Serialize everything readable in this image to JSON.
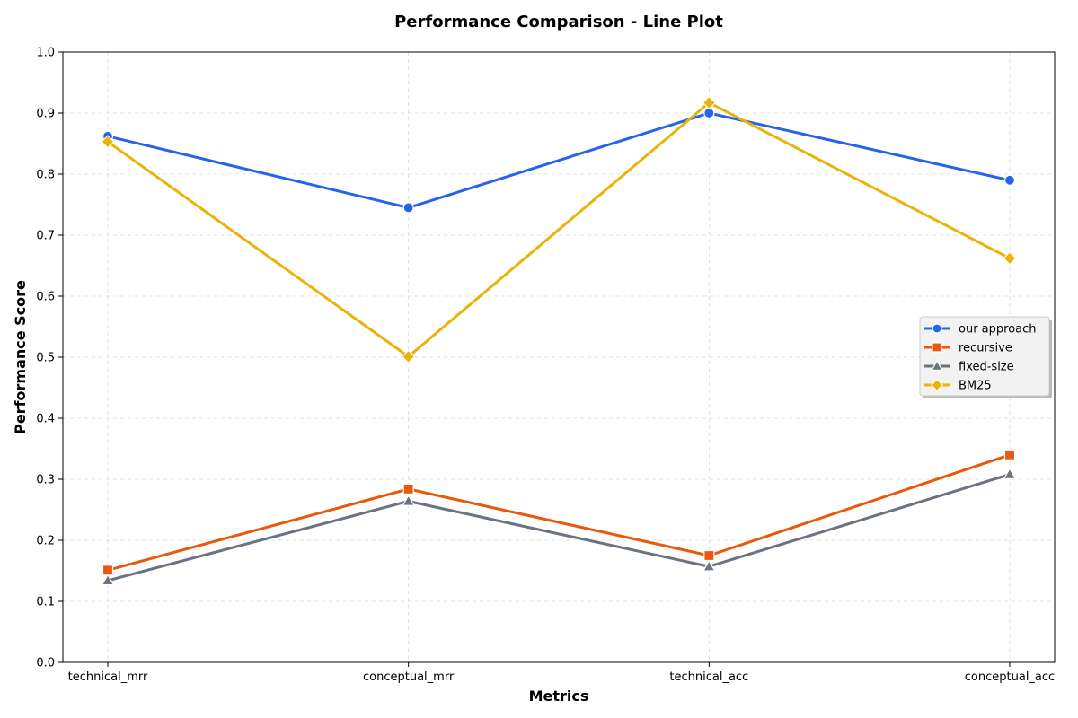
{
  "chart_data": {
    "type": "line",
    "title": "Performance Comparison - Line Plot",
    "xlabel": "Metrics",
    "ylabel": "Performance Score",
    "categories": [
      "technical_mrr",
      "conceptual_mrr",
      "technical_acc",
      "conceptual_acc"
    ],
    "ylim": [
      0,
      1.0
    ],
    "yticks": [
      "0.0",
      "0.1",
      "0.2",
      "0.3",
      "0.4",
      "0.5",
      "0.6",
      "0.7",
      "0.8",
      "0.9",
      "1.0"
    ],
    "grid": true,
    "legend_position": "center-right",
    "series": [
      {
        "name": "our approach",
        "color": "#2563eb",
        "marker": "circle",
        "values": [
          0.862,
          0.745,
          0.9,
          0.79
        ]
      },
      {
        "name": "recursive",
        "color": "#ea580c",
        "marker": "square",
        "values": [
          0.151,
          0.284,
          0.175,
          0.34
        ]
      },
      {
        "name": "fixed-size",
        "color": "#6b7280",
        "marker": "triangle",
        "values": [
          0.134,
          0.264,
          0.157,
          0.308
        ]
      },
      {
        "name": "BM25",
        "color": "#eab308",
        "marker": "diamond",
        "values": [
          0.853,
          0.501,
          0.917,
          0.662
        ]
      }
    ]
  }
}
